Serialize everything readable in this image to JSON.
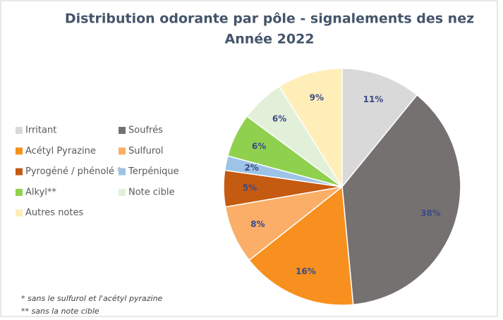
{
  "chart_data": {
    "type": "pie",
    "title": "Distribution odorante par pôle  - signalements des nez",
    "subtitle": "Année 2022",
    "categories": [
      "Irritant",
      "Soufrés",
      "Acétyl Pyrazine",
      "Sulfurol",
      "Pyrogéné / phénolé *",
      "Terpénique",
      "Alkyl**",
      "Note cible",
      "Autres notes"
    ],
    "values": [
      11,
      38,
      16,
      8,
      5,
      2,
      6,
      6,
      9
    ],
    "value_labels": [
      "11%",
      "38%",
      "16%",
      "8%",
      "5%",
      "2%",
      "6%",
      "6%",
      "9%"
    ],
    "colors": [
      "#d9d9d9",
      "#767171",
      "#f7901e",
      "#fbae67",
      "#c55a11",
      "#9dc3e6",
      "#8fd14f",
      "#e2f0d9",
      "#ffeeb8"
    ],
    "legend": "left",
    "footnotes": [
      "* sans le sulfurol et l'acétyl pyrazine",
      "** sans la note cible"
    ]
  }
}
